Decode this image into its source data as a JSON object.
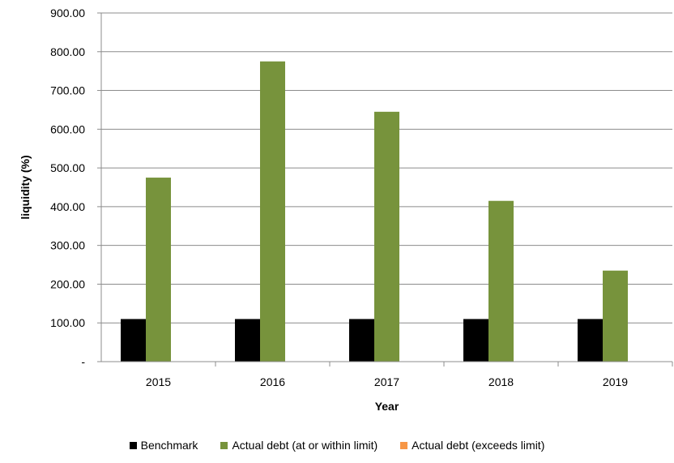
{
  "chart_data": {
    "type": "bar",
    "categories": [
      "2015",
      "2016",
      "2017",
      "2018",
      "2019"
    ],
    "series": [
      {
        "name": "Benchmark",
        "values": [
          110,
          110,
          110,
          110,
          110
        ],
        "color": "#000000"
      },
      {
        "name": "Actual debt (at or within limit)",
        "values": [
          475,
          775,
          645,
          415,
          235
        ],
        "color": "#77933c"
      },
      {
        "name": "Actual debt (exceeds limit)",
        "values": [
          0,
          0,
          0,
          0,
          0
        ],
        "color": "#f79646"
      }
    ],
    "xlabel": "Year",
    "ylabel": "liquidity (%)",
    "ylim": [
      0,
      900
    ],
    "yticks": [
      0,
      100,
      200,
      300,
      400,
      500,
      600,
      700,
      800,
      900
    ],
    "ytick_labels": [
      "-",
      "100.00",
      "200.00",
      "300.00",
      "400.00",
      "500.00",
      "600.00",
      "700.00",
      "800.00",
      "900.00"
    ],
    "grid": true,
    "legend_position": "bottom"
  }
}
